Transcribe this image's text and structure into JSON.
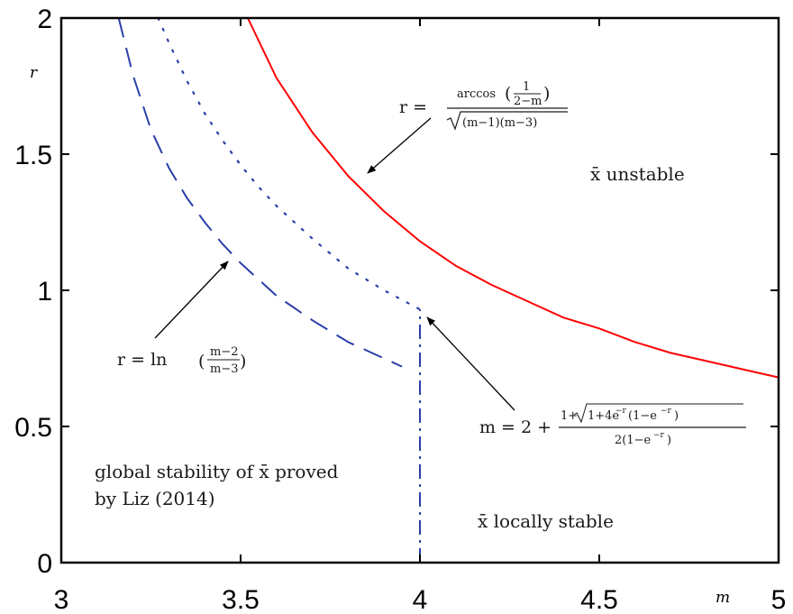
{
  "chart_data": {
    "type": "line",
    "title": "",
    "xlabel": "m",
    "ylabel": "r",
    "xlim": [
      3,
      5
    ],
    "ylim": [
      0,
      2
    ],
    "xticks": [
      "3",
      "3.5",
      "4",
      "4.5",
      "5"
    ],
    "yticks": [
      "0",
      "0.5",
      "1",
      "1.5",
      "2"
    ],
    "grid": false,
    "colors": {
      "unstable_curve": "#ff0000",
      "stability_curves": "#2a3fa8",
      "arrows": "#000000"
    },
    "series": [
      {
        "style": "solid",
        "color": "#ff0000",
        "x": [
          3.52,
          3.6,
          3.7,
          3.8,
          3.9,
          4.0,
          4.1,
          4.2,
          4.3,
          4.4,
          4.5,
          4.6,
          4.7,
          4.8,
          4.9,
          5.0
        ],
        "y": [
          2.0,
          1.78,
          1.58,
          1.42,
          1.29,
          1.18,
          1.09,
          1.02,
          0.96,
          0.9,
          0.86,
          0.81,
          0.77,
          0.74,
          0.71,
          0.68
        ]
      },
      {
        "style": "dashed",
        "color": "#2a3fa8",
        "x": [
          3.16,
          3.2,
          3.25,
          3.3,
          3.35,
          3.4,
          3.45,
          3.5,
          3.6,
          3.7,
          3.8,
          3.9,
          3.95
        ],
        "y": [
          2.0,
          1.79,
          1.59,
          1.45,
          1.34,
          1.25,
          1.17,
          1.1,
          0.98,
          0.89,
          0.81,
          0.75,
          0.72
        ]
      },
      {
        "style": "dotted",
        "color": "#2a3fa8",
        "x": [
          3.27,
          3.3,
          3.35,
          3.4,
          3.45,
          3.5,
          3.55,
          3.6,
          3.7,
          3.8,
          3.9,
          4.0
        ],
        "y": [
          2.0,
          1.91,
          1.77,
          1.65,
          1.55,
          1.46,
          1.38,
          1.31,
          1.19,
          1.08,
          1.0,
          0.93
        ]
      },
      {
        "style": "dashdot",
        "color": "#2a3fa8",
        "x": [
          4.0,
          4.0
        ],
        "y": [
          0.0,
          0.93
        ]
      }
    ],
    "annotations": {
      "unstable_region": "x̄ unstable",
      "locally_stable_region": "x̄ locally stable",
      "global_line1": "global stability of x̄ proved",
      "global_line2": "by Liz (2014)",
      "formula_red": {
        "lhs": "r =",
        "num_func": "arccos",
        "num_open": "(",
        "num_frac_num": "1",
        "num_frac_den": "2−m",
        "num_close": ")",
        "den": "(m−1)(m−3)"
      },
      "formula_ln": {
        "lhs": "r = ln",
        "open": "(",
        "num": "m−2",
        "den": "m−3",
        "close": ")"
      },
      "formula_m": {
        "lhs": "m = 2 +",
        "num_pre": "1+",
        "num_root": "1+4e",
        "num_exp1": "−r",
        "num_mid": "(1−e",
        "num_exp2": "−r",
        "num_end": ")",
        "den_pre": "2(1−e",
        "den_exp": "−r",
        "den_end": ")"
      }
    }
  }
}
